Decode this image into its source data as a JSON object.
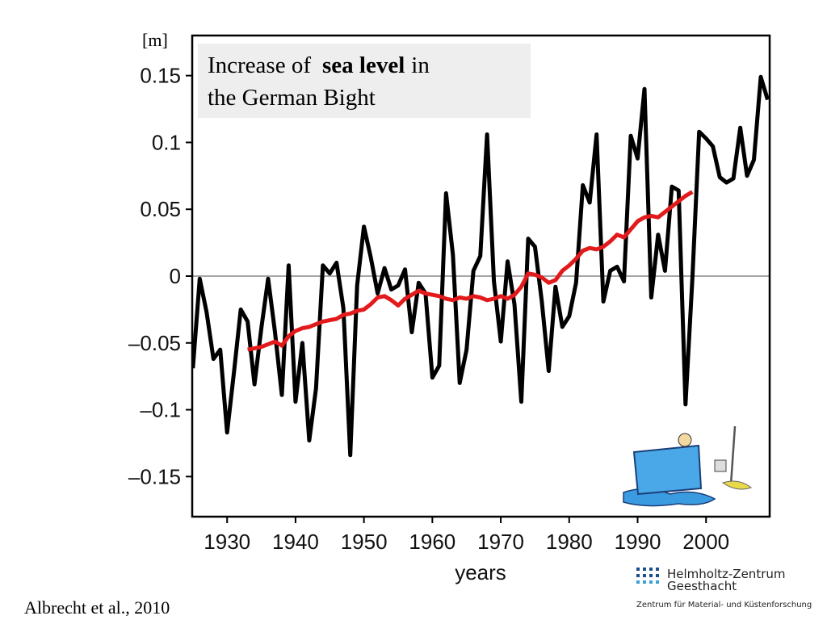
{
  "chart_data": {
    "type": "line",
    "title": {
      "line1_start": "Increase of",
      "bold": "sea level",
      "line1_end": "in",
      "line2": "the German Bight"
    },
    "ylabel": "[m]",
    "xlabel": "years",
    "source": "Albrecht et al., 2010",
    "logo": {
      "name": "Helmholtz-Zentrum",
      "place": "Geesthacht",
      "tagline": "Zentrum für Material- und Küstenforschung"
    },
    "xlim": [
      1924.9,
      2009.3
    ],
    "ylim": [
      -0.18,
      0.18
    ],
    "xticks": [
      1930,
      1940,
      1950,
      1960,
      1970,
      1980,
      1990,
      2000
    ],
    "yticks": [
      {
        "value": -0.15,
        "label": "–0.15"
      },
      {
        "value": -0.1,
        "label": "–0.1"
      },
      {
        "value": -0.05,
        "label": "–0.05"
      },
      0,
      0.05,
      0.1,
      0.15
    ],
    "reference_line": 0,
    "x": [
      1925,
      1926,
      1927,
      1928,
      1929,
      1930,
      1931,
      1932,
      1933,
      1934,
      1935,
      1936,
      1937,
      1938,
      1939,
      1940,
      1941,
      1942,
      1943,
      1944,
      1945,
      1946,
      1947,
      1948,
      1949,
      1950,
      1951,
      1952,
      1953,
      1954,
      1955,
      1956,
      1957,
      1958,
      1959,
      1960,
      1961,
      1962,
      1963,
      1964,
      1965,
      1966,
      1967,
      1968,
      1969,
      1970,
      1971,
      1972,
      1973,
      1974,
      1975,
      1976,
      1977,
      1978,
      1979,
      1980,
      1981,
      1982,
      1983,
      1984,
      1985,
      1986,
      1987,
      1988,
      1989,
      1990,
      1991,
      1992,
      1993,
      1994,
      1995,
      1996,
      1997,
      1998,
      1999,
      2000,
      2001,
      2002,
      2003,
      2004,
      2005,
      2006,
      2007,
      2008,
      2009
    ],
    "series": [
      {
        "color": "#000000",
        "values": [
          -0.069,
          -0.002,
          -0.027,
          -0.062,
          -0.055,
          -0.117,
          -0.072,
          -0.025,
          -0.034,
          -0.081,
          -0.039,
          -0.002,
          -0.042,
          -0.089,
          0.008,
          -0.094,
          -0.05,
          -0.123,
          -0.084,
          0.008,
          0.002,
          0.01,
          -0.024,
          -0.134,
          -0.007,
          0.037,
          0.014,
          -0.013,
          0.006,
          -0.01,
          -0.007,
          0.005,
          -0.042,
          -0.005,
          -0.013,
          -0.076,
          -0.067,
          0.062,
          0.016,
          -0.08,
          -0.055,
          0.004,
          0.015,
          0.106,
          -0.004,
          -0.049,
          0.011,
          -0.021,
          -0.094,
          0.028,
          0.022,
          -0.019,
          -0.071,
          -0.008,
          -0.038,
          -0.03,
          -0.005,
          0.068,
          0.055,
          0.106,
          -0.019,
          0.004,
          0.007,
          -0.004,
          0.105,
          0.088,
          0.14,
          -0.016,
          0.031,
          0.004,
          0.067,
          0.064,
          -0.096,
          -0.002,
          0.108,
          0.103,
          0.097,
          0.074,
          0.07,
          0.073,
          0.111,
          0.075,
          0.087,
          0.149,
          0.132
        ]
      },
      {
        "color": "#e31a1c",
        "values": [
          null,
          null,
          null,
          null,
          null,
          null,
          null,
          null,
          -0.055,
          -0.054,
          -0.053,
          -0.051,
          -0.049,
          -0.052,
          -0.045,
          -0.041,
          -0.039,
          -0.038,
          -0.036,
          -0.034,
          -0.033,
          -0.032,
          -0.029,
          -0.028,
          -0.026,
          -0.025,
          -0.021,
          -0.016,
          -0.015,
          -0.018,
          -0.022,
          -0.017,
          -0.014,
          -0.011,
          -0.013,
          -0.014,
          -0.015,
          -0.017,
          -0.018,
          -0.016,
          -0.017,
          -0.015,
          -0.016,
          -0.018,
          -0.017,
          -0.015,
          -0.017,
          -0.014,
          -0.008,
          0.002,
          0.001,
          -0.001,
          -0.005,
          -0.003,
          0.004,
          0.008,
          0.013,
          0.019,
          0.021,
          0.02,
          0.022,
          0.026,
          0.031,
          0.029,
          0.035,
          0.041,
          0.044,
          0.045,
          0.044,
          0.048,
          0.052,
          0.056,
          0.06,
          0.063,
          null,
          null,
          null,
          null,
          null,
          null,
          null,
          null,
          null,
          null,
          null
        ]
      }
    ]
  }
}
